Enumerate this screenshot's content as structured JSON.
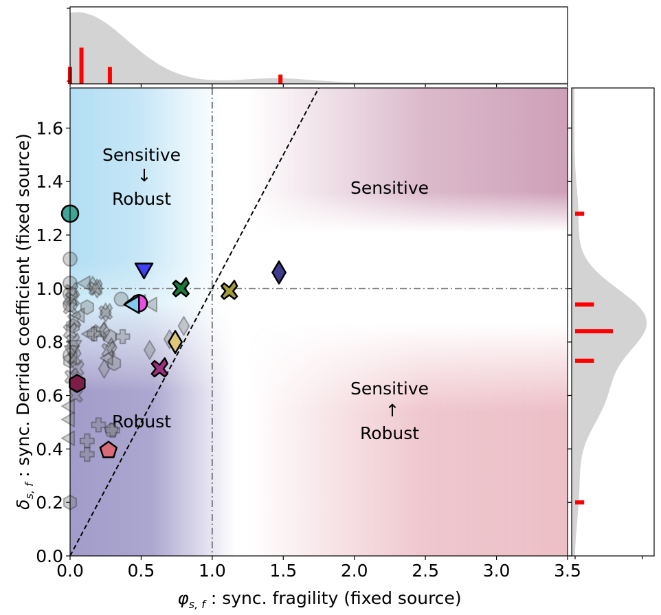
{
  "chart_data": {
    "type": "scatter",
    "xlabel_var": "φ",
    "xlabel_sub": "s, f",
    "xlabel_rest": " : sync. fragility (fixed source)",
    "ylabel_var": "δ",
    "ylabel_sub": "s, f",
    "ylabel_rest": " : sync. Derrida coefficient (fixed source)",
    "xlim": [
      0,
      3.5
    ],
    "ylim": [
      0,
      1.75
    ],
    "xticks": [
      0.0,
      0.5,
      1.0,
      1.5,
      2.0,
      2.5,
      3.0,
      3.5
    ],
    "xtick_labels": [
      "0.0",
      "0.5",
      "1.0",
      "1.5",
      "2.0",
      "2.5",
      "3.0",
      "3.5"
    ],
    "yticks": [
      0.0,
      0.2,
      0.4,
      0.6,
      0.8,
      1.0,
      1.2,
      1.4,
      1.6
    ],
    "ytick_labels": [
      "0.0",
      "0.2",
      "0.4",
      "0.6",
      "0.8",
      "1.0",
      "1.2",
      "1.4",
      "1.6"
    ],
    "reference_lines": {
      "vertical_x": 1.0,
      "horizontal_y": 1.0,
      "diagonal": "y = x"
    },
    "region_labels": {
      "top_left": [
        "Sensitive",
        "↓",
        "Robust"
      ],
      "top_right": [
        "Sensitive"
      ],
      "bottom_left": [
        "Robust"
      ],
      "bottom_right": [
        "Sensitive",
        "↑",
        "Robust"
      ]
    },
    "highlighted_points": [
      {
        "marker": "circle",
        "color": "#3fa597",
        "x": 0.0,
        "y": 1.28
      },
      {
        "marker": "hexagon",
        "color": "#7e1d4a",
        "x": 0.05,
        "y": 0.645
      },
      {
        "marker": "pentagon",
        "color": "#d86b78",
        "x": 0.27,
        "y": 0.395
      },
      {
        "marker": "pie",
        "color": "#e84fe2",
        "x": 0.39,
        "y": 0.945
      },
      {
        "marker": "triangle-left",
        "color": "#82c9ef",
        "x": 0.45,
        "y": 0.94
      },
      {
        "marker": "triangle-down",
        "color": "#3f3ff7",
        "x": 0.52,
        "y": 1.075
      },
      {
        "marker": "diamond",
        "color": "#dcc877",
        "x": 0.74,
        "y": 0.8
      },
      {
        "marker": "x",
        "color": "#a0307f",
        "x": 0.63,
        "y": 0.7
      },
      {
        "marker": "x",
        "color": "#1c7a3c",
        "x": 0.78,
        "y": 1.0
      },
      {
        "marker": "x",
        "color": "#a39a3a",
        "x": 1.12,
        "y": 0.99
      },
      {
        "marker": "diamond",
        "color": "#3e3c8c",
        "x": 1.47,
        "y": 1.06
      }
    ],
    "background_points": [
      {
        "marker": "circle",
        "x": 0.0,
        "y": 1.11
      },
      {
        "marker": "circle",
        "x": 0.0,
        "y": 1.02
      },
      {
        "marker": "circle",
        "x": 0.0,
        "y": 0.98
      },
      {
        "marker": "circle",
        "x": 0.0,
        "y": 0.94
      },
      {
        "marker": "circle",
        "x": 0.0,
        "y": 0.75
      },
      {
        "marker": "circle",
        "x": 0.36,
        "y": 0.96
      },
      {
        "marker": "hexagon",
        "x": 0.0,
        "y": 0.73
      },
      {
        "marker": "hexagon",
        "x": 0.0,
        "y": 0.2
      },
      {
        "marker": "hexagon",
        "x": 0.02,
        "y": 0.86
      },
      {
        "marker": "hexagon",
        "x": 0.12,
        "y": 0.93
      },
      {
        "marker": "hexagon",
        "x": 0.31,
        "y": 0.72
      },
      {
        "marker": "hexagon",
        "x": 0.28,
        "y": 0.82
      },
      {
        "marker": "diamond",
        "x": 0.16,
        "y": 1.01
      },
      {
        "marker": "diamond",
        "x": 0.19,
        "y": 1.0
      },
      {
        "marker": "diamond",
        "x": 0.24,
        "y": 0.84
      },
      {
        "marker": "diamond",
        "x": 0.24,
        "y": 0.7
      },
      {
        "marker": "diamond",
        "x": 0.29,
        "y": 0.78
      },
      {
        "marker": "diamond",
        "x": 0.56,
        "y": 0.77
      },
      {
        "marker": "diamond",
        "x": 0.7,
        "y": 0.81
      },
      {
        "marker": "diamond",
        "x": 0.8,
        "y": 0.86
      },
      {
        "marker": "diamond",
        "x": 0.25,
        "y": 0.91
      },
      {
        "marker": "x",
        "x": 0.01,
        "y": 0.99
      },
      {
        "marker": "x",
        "x": 0.02,
        "y": 0.96
      },
      {
        "marker": "x",
        "x": 0.0,
        "y": 0.93
      },
      {
        "marker": "x",
        "x": 0.03,
        "y": 0.88
      },
      {
        "marker": "x",
        "x": 0.02,
        "y": 0.8
      },
      {
        "marker": "x",
        "x": 0.03,
        "y": 0.74
      },
      {
        "marker": "x",
        "x": 0.05,
        "y": 0.7
      },
      {
        "marker": "x",
        "x": 0.0,
        "y": 0.84
      },
      {
        "marker": "x",
        "x": 0.18,
        "y": 1.0
      },
      {
        "marker": "x",
        "x": 0.21,
        "y": 0.84
      },
      {
        "marker": "x",
        "x": 0.25,
        "y": 0.91
      },
      {
        "marker": "x",
        "x": 0.27,
        "y": 0.77
      },
      {
        "marker": "x",
        "x": 0.04,
        "y": 0.6
      },
      {
        "marker": "x",
        "x": 0.01,
        "y": 0.67
      },
      {
        "marker": "triangle-down",
        "x": 0.03,
        "y": 0.79
      },
      {
        "marker": "triangle-down",
        "x": 0.01,
        "y": 0.77
      },
      {
        "marker": "triangle-left",
        "x": 0.0,
        "y": 0.44
      },
      {
        "marker": "triangle-left",
        "x": 0.0,
        "y": 0.51
      },
      {
        "marker": "triangle-left",
        "x": 0.0,
        "y": 0.56
      },
      {
        "marker": "triangle-left",
        "x": 0.11,
        "y": 1.02
      },
      {
        "marker": "triangle-left",
        "x": 0.27,
        "y": 0.74
      },
      {
        "marker": "triangle-left",
        "x": 0.5,
        "y": 0.95
      },
      {
        "marker": "triangle-left",
        "x": 0.58,
        "y": 0.94
      },
      {
        "marker": "triangle-left",
        "x": 0.14,
        "y": 0.83
      },
      {
        "marker": "triangle-left",
        "x": 0.07,
        "y": 0.9
      },
      {
        "marker": "plus",
        "x": 0.12,
        "y": 0.43
      },
      {
        "marker": "plus",
        "x": 0.12,
        "y": 0.38
      },
      {
        "marker": "plus",
        "x": 0.2,
        "y": 0.49
      },
      {
        "marker": "plus",
        "x": 0.3,
        "y": 0.47
      },
      {
        "marker": "plus",
        "x": 0.37,
        "y": 0.82
      },
      {
        "marker": "plus",
        "x": 0.17,
        "y": 0.83
      },
      {
        "marker": "pentagon",
        "x": 0.29,
        "y": 0.47
      }
    ],
    "top_marginal": {
      "type": "area",
      "color": "#d3d3d3",
      "bars_color": "#ff0000",
      "bars": [
        {
          "x": 0.0,
          "height": 0.22
        },
        {
          "x": 0.08,
          "height": 0.47
        },
        {
          "x": 0.28,
          "height": 0.22
        },
        {
          "x": 1.48,
          "height": 0.12
        }
      ]
    },
    "right_marginal": {
      "type": "area",
      "color": "#d3d3d3",
      "bars_color": "#ff0000",
      "bars": [
        {
          "y": 1.28,
          "length": 0.12
        },
        {
          "y": 0.94,
          "length": 0.25
        },
        {
          "y": 0.84,
          "length": 0.5
        },
        {
          "y": 0.73,
          "length": 0.25
        },
        {
          "y": 0.2,
          "length": 0.12
        }
      ]
    },
    "colors": {
      "region_top_left": "#a6d9f2",
      "region_top_right": "#b86f93",
      "region_bottom_left": "#7a72b3",
      "region_bottom_right": "#d98794",
      "reference_line": "#808080",
      "diagonal_line": "#000000"
    }
  }
}
